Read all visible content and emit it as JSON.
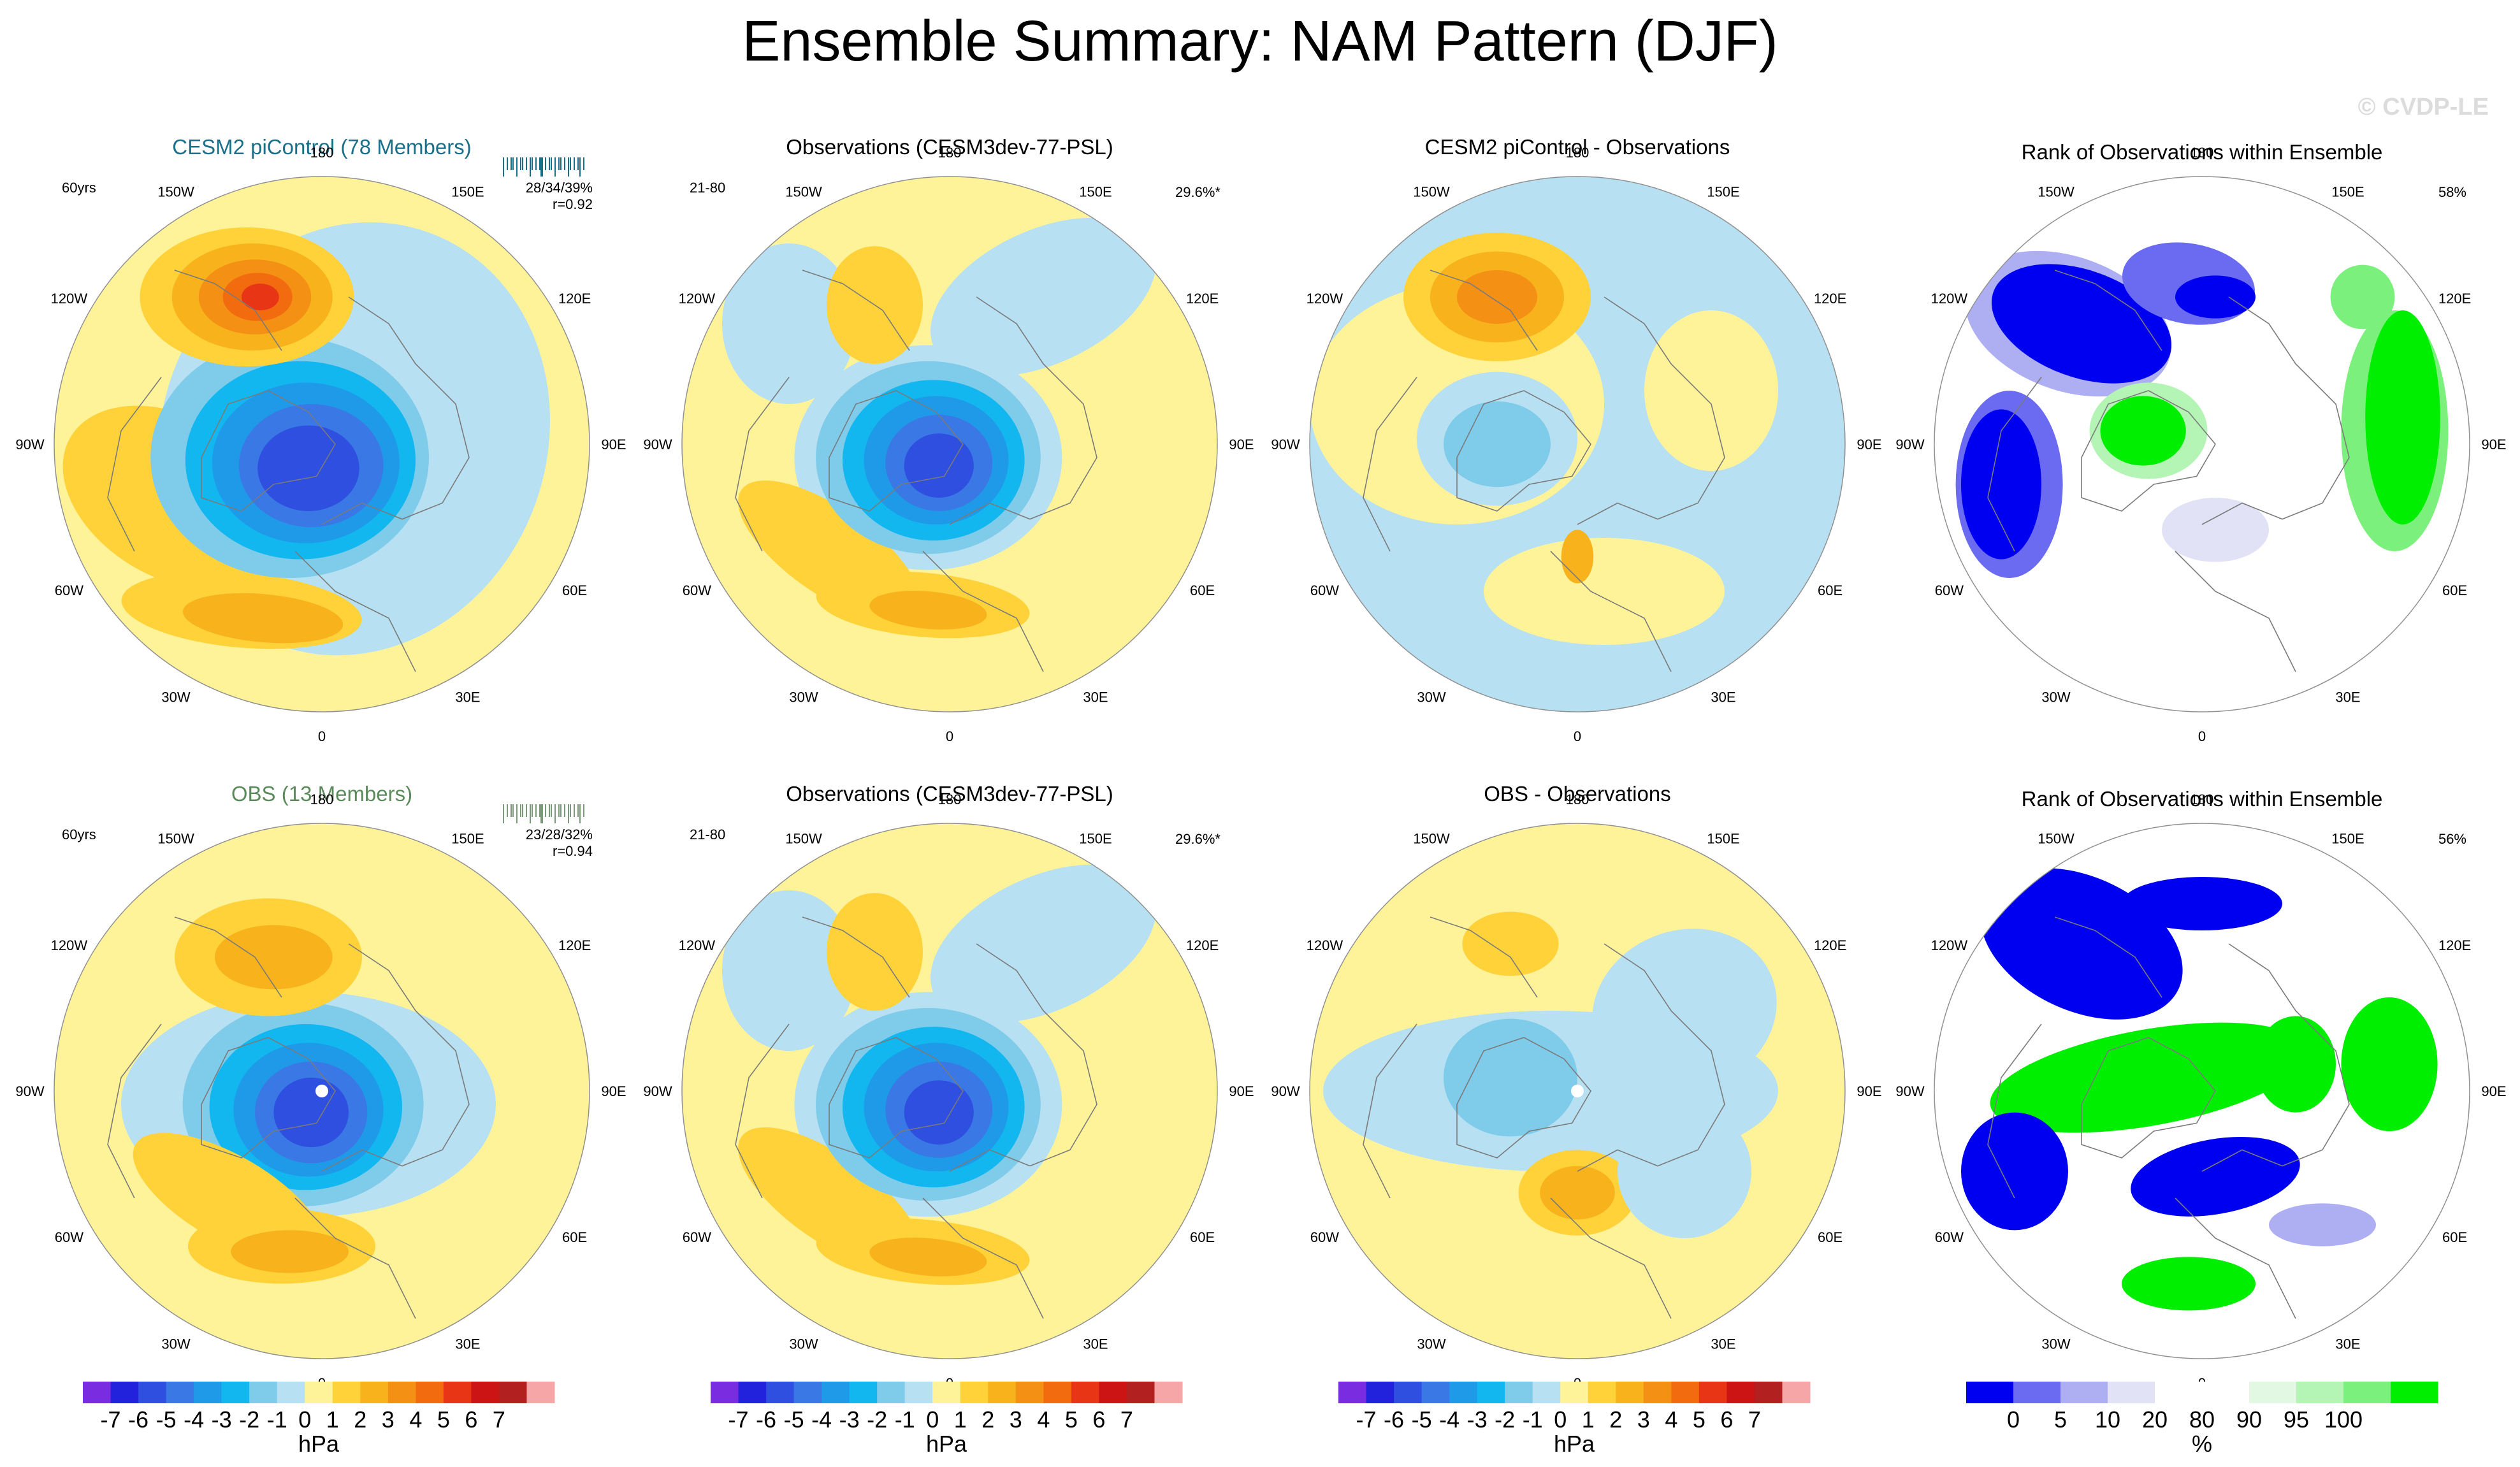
{
  "title": "Ensemble Summary: NAM Pattern (DJF)",
  "watermark": "© CVDP-LE",
  "lon_labels": [
    "180",
    "150E",
    "120E",
    "90E",
    "60E",
    "30E",
    "0",
    "30W",
    "60W",
    "90W",
    "120W",
    "150W"
  ],
  "rows": [
    {
      "panels": [
        {
          "kind": "ens",
          "title": "CESM2 piControl (78 Members)",
          "title_color": "#1a6f8a",
          "left_note": "60yrs",
          "right_note": "28/34/39%",
          "right_note2": "r=0.92",
          "pattern": "ens1"
        },
        {
          "kind": "obs",
          "title": "Observations (CESM3dev-77-PSL)",
          "title_color": "#000000",
          "left_note": "21-80",
          "right_note": "29.6%*",
          "pattern": "obs"
        },
        {
          "kind": "diff",
          "title": "CESM2 piControl - Observations",
          "title_color": "#000000",
          "left_note": "",
          "right_note": "",
          "pattern": "diff1"
        },
        {
          "kind": "rank",
          "title": "Rank of Observations within Ensemble",
          "title_color": "#000000",
          "left_note": "",
          "right_note": "58%",
          "pattern": "rank1"
        }
      ]
    },
    {
      "panels": [
        {
          "kind": "ens",
          "title": "OBS (13 Members)",
          "title_color": "#5a8a5a",
          "left_note": "60yrs",
          "right_note": "23/28/32%",
          "right_note2": "r=0.94",
          "pattern": "ens2"
        },
        {
          "kind": "obs",
          "title": "Observations (CESM3dev-77-PSL)",
          "title_color": "#000000",
          "left_note": "21-80",
          "right_note": "29.6%*",
          "pattern": "obs"
        },
        {
          "kind": "diff",
          "title": "OBS - Observations",
          "title_color": "#000000",
          "left_note": "",
          "right_note": "",
          "pattern": "diff2"
        },
        {
          "kind": "rank",
          "title": "Rank of Observations within Ensemble",
          "title_color": "#000000",
          "left_note": "",
          "right_note": "56%",
          "pattern": "rank2"
        }
      ]
    }
  ],
  "colorbars": [
    {
      "kind": "hpa",
      "unit": "hPa",
      "ticks": [
        "-7",
        "-6",
        "-5",
        "-4",
        "-3",
        "-2",
        "-1",
        "0",
        "1",
        "2",
        "3",
        "4",
        "5",
        "6",
        "7"
      ],
      "colors": [
        "#7a2ce0",
        "#2222dd",
        "#2e4fdf",
        "#3a78e6",
        "#1f9ae8",
        "#12b7ef",
        "#7fcbea",
        "#b7e0f2",
        "#fff39a",
        "#ffd23a",
        "#f7b21c",
        "#f49013",
        "#f26b0e",
        "#e83515",
        "#cc1414",
        "#b32020",
        "#f6a6a6"
      ]
    },
    {
      "kind": "hpa",
      "unit": "hPa",
      "ticks": [
        "-7",
        "-6",
        "-5",
        "-4",
        "-3",
        "-2",
        "-1",
        "0",
        "1",
        "2",
        "3",
        "4",
        "5",
        "6",
        "7"
      ],
      "colors": [
        "#7a2ce0",
        "#2222dd",
        "#2e4fdf",
        "#3a78e6",
        "#1f9ae8",
        "#12b7ef",
        "#7fcbea",
        "#b7e0f2",
        "#fff39a",
        "#ffd23a",
        "#f7b21c",
        "#f49013",
        "#f26b0e",
        "#e83515",
        "#cc1414",
        "#b32020",
        "#f6a6a6"
      ]
    },
    {
      "kind": "hpa",
      "unit": "hPa",
      "ticks": [
        "-7",
        "-6",
        "-5",
        "-4",
        "-3",
        "-2",
        "-1",
        "0",
        "1",
        "2",
        "3",
        "4",
        "5",
        "6",
        "7"
      ],
      "colors": [
        "#7a2ce0",
        "#2222dd",
        "#2e4fdf",
        "#3a78e6",
        "#1f9ae8",
        "#12b7ef",
        "#7fcbea",
        "#b7e0f2",
        "#fff39a",
        "#ffd23a",
        "#f7b21c",
        "#f49013",
        "#f26b0e",
        "#e83515",
        "#cc1414",
        "#b32020",
        "#f6a6a6"
      ]
    },
    {
      "kind": "rank",
      "unit": "%",
      "ticks": [
        "0",
        "5",
        "10",
        "20",
        "80",
        "90",
        "95",
        "100"
      ],
      "colors": [
        "#0000f0",
        "#6b6bf2",
        "#aeaef2",
        "#e2e2f6",
        "#ffffff",
        "#ffffff",
        "#e2f8e2",
        "#b4f4b4",
        "#7cf07c",
        "#00ee00"
      ]
    }
  ],
  "colors": {
    "land_outline": "#7a7a7a",
    "rim": "#909090",
    "pos1": "#fff39a",
    "pos2": "#ffd23a",
    "pos3": "#f7b21c",
    "pos4": "#f49013",
    "pos5": "#f26b0e",
    "pos6": "#e83515",
    "neg1": "#b7e0f2",
    "neg2": "#7fcbea",
    "neg3": "#12b7ef",
    "neg4": "#1f9ae8",
    "neg5": "#3a78e6",
    "neg6": "#2e4fdf",
    "rank_blue": "#0000f0",
    "rank_blue2": "#6b6bf2",
    "rank_blue3": "#aeaef2",
    "rank_blue4": "#e2e2f6",
    "rank_green": "#00ee00",
    "rank_green2": "#7cf07c",
    "rank_green3": "#b4f4b4",
    "rank_green4": "#e2f8e2"
  },
  "chart_data": {
    "type": "polar-map",
    "description_units": "hPa",
    "panels": [
      {
        "title": "CESM2 piControl (78 Members)",
        "variance_explained_pct": [
          28,
          34,
          39
        ],
        "pattern_correlation": 0.92,
        "years": "60yrs"
      },
      {
        "title": "Observations (CESM3dev-77-PSL)",
        "variance_explained_pct": 29.6,
        "years": "21-80"
      },
      {
        "title": "CESM2 piControl - Observations"
      },
      {
        "title": "Rank of Observations within Ensemble",
        "pct": 58
      },
      {
        "title": "OBS (13 Members)",
        "variance_explained_pct": [
          23,
          28,
          32
        ],
        "pattern_correlation": 0.94,
        "years": "60yrs"
      },
      {
        "title": "Observations (CESM3dev-77-PSL)",
        "variance_explained_pct": 29.6,
        "years": "21-80"
      },
      {
        "title": "OBS - Observations"
      },
      {
        "title": "Rank of Observations within Ensemble",
        "pct": 56
      }
    ],
    "colorbar_hpa": [
      -7,
      -6,
      -5,
      -4,
      -3,
      -2,
      -1,
      0,
      1,
      2,
      3,
      4,
      5,
      6,
      7
    ],
    "colorbar_rank_pct": [
      0,
      5,
      10,
      20,
      80,
      90,
      95,
      100
    ]
  }
}
